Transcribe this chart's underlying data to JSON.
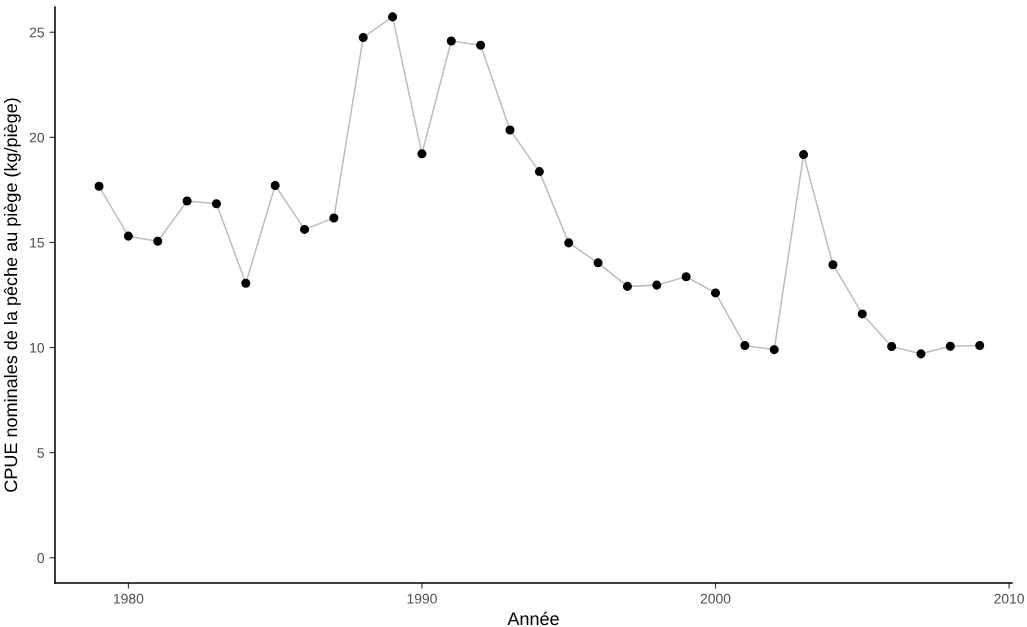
{
  "chart_data": {
    "type": "line",
    "xlabel": "Année",
    "ylabel": "CPUE nominales de la pêche au piège (kg/piège)",
    "x": [
      1979,
      1980,
      1981,
      1982,
      1983,
      1984,
      1985,
      1986,
      1987,
      1988,
      1989,
      1990,
      1991,
      1992,
      1993,
      1994,
      1995,
      1996,
      1997,
      1998,
      1999,
      2000,
      2001,
      2002,
      2003,
      2004,
      2005,
      2006,
      2007,
      2008,
      2009
    ],
    "series": [
      {
        "color": "#000000",
        "values": [
          17.67,
          15.3,
          15.06,
          16.97,
          16.84,
          13.06,
          17.71,
          15.62,
          16.16,
          24.75,
          25.73,
          19.22,
          24.58,
          24.38,
          20.35,
          18.37,
          14.98,
          14.03,
          12.91,
          12.97,
          13.37,
          12.6,
          10.1,
          9.9,
          19.18,
          13.94,
          11.6,
          10.05,
          9.7,
          10.06,
          10.1
        ]
      }
    ],
    "xlim": [
      1977.5,
      2010.1
    ],
    "ylim": [
      -1.2,
      26.2
    ],
    "xticks": [
      1980,
      1990,
      2000,
      2010
    ],
    "yticks": [
      0,
      5,
      10,
      15,
      20,
      25
    ],
    "grid": false,
    "marker": "circle",
    "line_style": "solid"
  }
}
